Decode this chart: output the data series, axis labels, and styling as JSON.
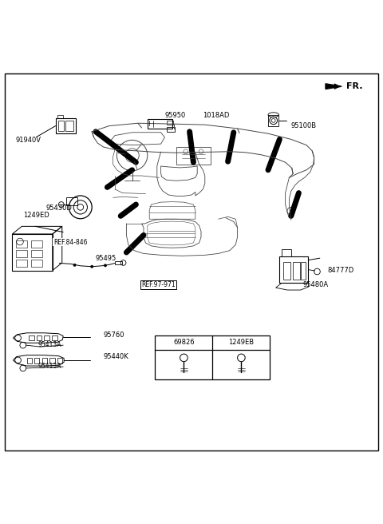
{
  "bg_color": "#ffffff",
  "fig_w": 4.8,
  "fig_h": 6.56,
  "dpi": 100,
  "labels": {
    "FR": [
      0.91,
      0.963,
      "FR.",
      8,
      "bold"
    ],
    "91940V": [
      0.04,
      0.818,
      "91940V",
      6,
      "normal"
    ],
    "95950": [
      0.43,
      0.872,
      "95950",
      6,
      "normal"
    ],
    "1018AD": [
      0.53,
      0.872,
      "1018AD",
      6,
      "normal"
    ],
    "95100B": [
      0.76,
      0.856,
      "95100B",
      6,
      "normal"
    ],
    "95430D": [
      0.12,
      0.64,
      "95430D",
      6,
      "normal"
    ],
    "1249ED": [
      0.06,
      0.621,
      "1249ED",
      6,
      "normal"
    ],
    "REF84846": [
      0.14,
      0.552,
      "REF.84-846",
      5.5,
      "normal"
    ],
    "95495": [
      0.25,
      0.51,
      "95495",
      6,
      "normal"
    ],
    "REF97971": [
      0.37,
      0.44,
      "REF.97-971",
      5.5,
      "normal"
    ],
    "84777D": [
      0.855,
      0.478,
      "84777D",
      6,
      "normal"
    ],
    "95480A": [
      0.79,
      0.44,
      "95480A",
      6,
      "normal"
    ],
    "95760": [
      0.27,
      0.31,
      "95760",
      6,
      "normal"
    ],
    "95413A_1": [
      0.1,
      0.285,
      "95413A",
      5.5,
      "normal"
    ],
    "95440K": [
      0.27,
      0.253,
      "95440K",
      6,
      "normal"
    ],
    "95413A_2": [
      0.1,
      0.228,
      "95413A",
      5.5,
      "normal"
    ],
    "69826": [
      0.48,
      0.295,
      "69826",
      6,
      "normal"
    ],
    "1249EB": [
      0.62,
      0.295,
      "1249EB",
      6,
      "normal"
    ]
  },
  "thick_lines": [
    [
      0.25,
      0.84,
      0.355,
      0.76
    ],
    [
      0.495,
      0.84,
      0.505,
      0.76
    ],
    [
      0.61,
      0.838,
      0.595,
      0.762
    ],
    [
      0.73,
      0.82,
      0.7,
      0.74
    ],
    [
      0.78,
      0.68,
      0.76,
      0.62
    ],
    [
      0.28,
      0.695,
      0.345,
      0.74
    ],
    [
      0.315,
      0.62,
      0.355,
      0.65
    ],
    [
      0.33,
      0.525,
      0.375,
      0.57
    ]
  ],
  "table": [
    0.405,
    0.193,
    0.3,
    0.115
  ]
}
